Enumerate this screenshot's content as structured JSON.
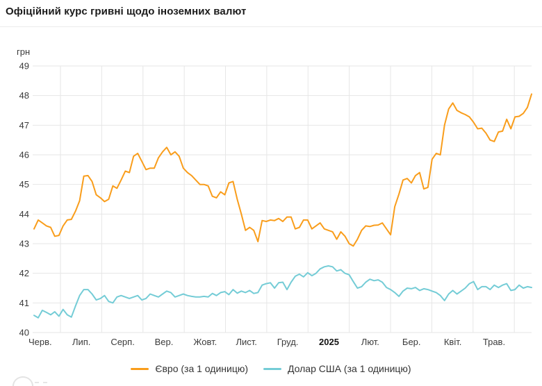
{
  "header": {
    "title": "Офіційний курс гривні щодо іноземних валют"
  },
  "chart_data": {
    "type": "line",
    "title": "Офіційний курс гривні щодо іноземних валют",
    "grid": true,
    "legend_position": "bottom",
    "y_axis": {
      "title": "грн",
      "min": 40,
      "max": 49,
      "ticks": [
        49,
        48,
        47,
        46,
        45,
        44,
        43,
        42,
        41,
        40
      ]
    },
    "x_axis": {
      "labels": [
        "Черв.",
        "Лип.",
        "Серп.",
        "Вер.",
        "Жовт.",
        "Лист.",
        "Груд.",
        "2025",
        "Лют.",
        "Бер.",
        "Квіт.",
        "Трав."
      ],
      "bold_label": "2025"
    },
    "series": [
      {
        "name": "Євро (за 1 одиницю)",
        "color": "#f99d1b",
        "values": [
          43.5,
          43.8,
          43.7,
          43.6,
          43.55,
          43.25,
          43.28,
          43.6,
          43.8,
          43.82,
          44.1,
          44.45,
          45.28,
          45.3,
          45.1,
          44.65,
          44.55,
          44.42,
          44.5,
          44.95,
          44.87,
          45.15,
          45.45,
          45.4,
          45.95,
          46.05,
          45.78,
          45.5,
          45.55,
          45.55,
          45.9,
          46.1,
          46.25,
          46.0,
          46.1,
          45.95,
          45.55,
          45.4,
          45.3,
          45.15,
          45.0,
          45.0,
          44.95,
          44.6,
          44.55,
          44.75,
          44.65,
          45.05,
          45.1,
          44.5,
          44.0,
          43.45,
          43.55,
          43.45,
          43.07,
          43.78,
          43.75,
          43.8,
          43.78,
          43.85,
          43.75,
          43.9,
          43.9,
          43.5,
          43.55,
          43.8,
          43.8,
          43.5,
          43.6,
          43.7,
          43.5,
          43.45,
          43.4,
          43.15,
          43.4,
          43.25,
          43.0,
          42.92,
          43.15,
          43.45,
          43.6,
          43.58,
          43.62,
          43.63,
          43.7,
          43.5,
          43.3,
          44.25,
          44.67,
          45.15,
          45.2,
          45.05,
          45.3,
          45.4,
          44.85,
          44.9,
          45.85,
          46.05,
          46.0,
          47.0,
          47.55,
          47.75,
          47.5,
          47.42,
          47.36,
          47.28,
          47.1,
          46.88,
          46.9,
          46.73,
          46.5,
          46.45,
          46.77,
          46.8,
          47.2,
          46.88,
          47.28,
          47.3,
          47.4,
          47.6,
          48.05
        ]
      },
      {
        "name": "Долар США (за 1 одиницю)",
        "color": "#74ccd6",
        "values": [
          40.58,
          40.5,
          40.75,
          40.68,
          40.6,
          40.7,
          40.55,
          40.78,
          40.6,
          40.52,
          40.9,
          41.25,
          41.45,
          41.45,
          41.3,
          41.1,
          41.15,
          41.25,
          41.05,
          41.0,
          41.2,
          41.25,
          41.2,
          41.15,
          41.2,
          41.25,
          41.1,
          41.15,
          41.3,
          41.25,
          41.2,
          41.3,
          41.4,
          41.35,
          41.2,
          41.25,
          41.3,
          41.25,
          41.22,
          41.2,
          41.2,
          41.22,
          41.2,
          41.32,
          41.25,
          41.35,
          41.38,
          41.28,
          41.45,
          41.33,
          41.4,
          41.35,
          41.42,
          41.32,
          41.35,
          41.6,
          41.65,
          41.68,
          41.5,
          41.68,
          41.7,
          41.45,
          41.7,
          41.9,
          41.97,
          41.88,
          42.02,
          41.92,
          42.0,
          42.15,
          42.22,
          42.25,
          42.22,
          42.08,
          42.12,
          42.0,
          41.95,
          41.72,
          41.5,
          41.55,
          41.7,
          41.8,
          41.75,
          41.78,
          41.7,
          41.52,
          41.45,
          41.35,
          41.22,
          41.4,
          41.5,
          41.48,
          41.52,
          41.42,
          41.48,
          41.45,
          41.4,
          41.35,
          41.25,
          41.08,
          41.3,
          41.42,
          41.3,
          41.4,
          41.5,
          41.65,
          41.72,
          41.45,
          41.55,
          41.55,
          41.45,
          41.6,
          41.52,
          41.6,
          41.65,
          41.42,
          41.45,
          41.6,
          41.5,
          41.55,
          41.52
        ]
      }
    ]
  }
}
